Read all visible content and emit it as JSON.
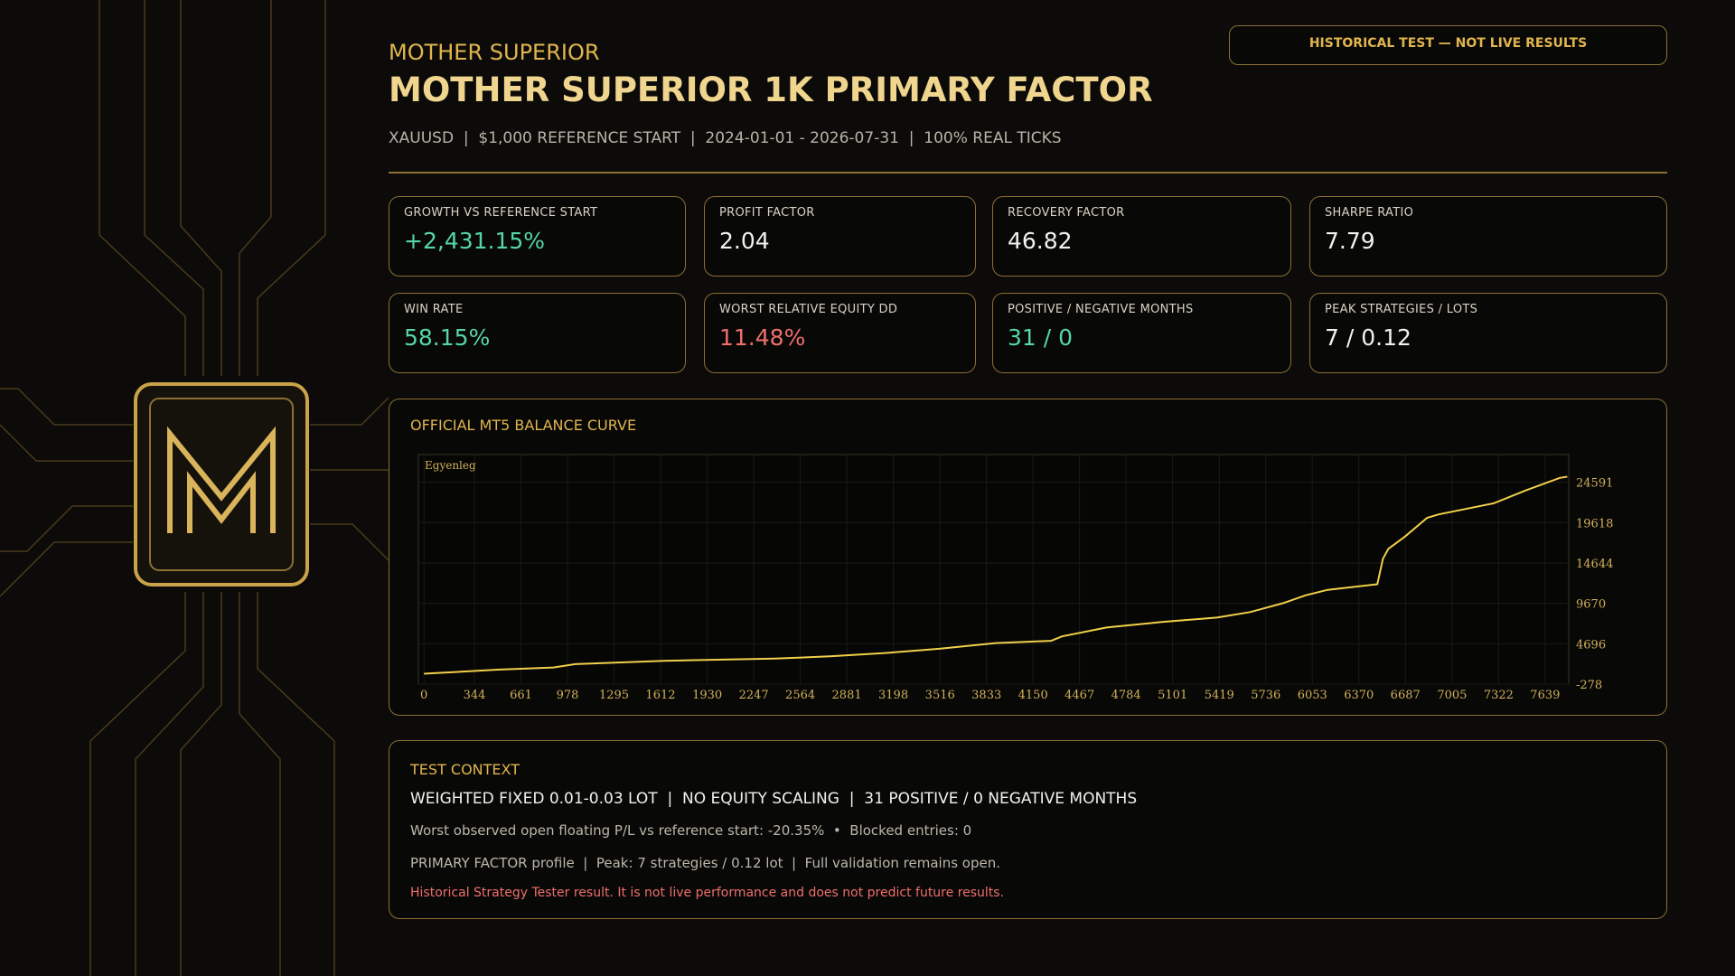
{
  "header": {
    "brand": "MOTHER SUPERIOR",
    "title": "MOTHER SUPERIOR 1K PRIMARY FACTOR",
    "meta": "XAUUSD  |  $1,000 REFERENCE START  |  2024-01-01 - 2026-07-31  |  100% REAL TICKS",
    "badge": "HISTORICAL TEST — NOT LIVE RESULTS"
  },
  "metrics": [
    {
      "label": "GROWTH VS REFERENCE START",
      "value": "+2,431.15%",
      "color": "#55d6a4"
    },
    {
      "label": "PROFIT FACTOR",
      "value": "2.04",
      "color": "#f3f1ea"
    },
    {
      "label": "RECOVERY FACTOR",
      "value": "46.82",
      "color": "#f3f1ea"
    },
    {
      "label": "SHARPE RATIO",
      "value": "7.79",
      "color": "#f3f1ea"
    },
    {
      "label": "WIN RATE",
      "value": "58.15%",
      "color": "#55d6a4"
    },
    {
      "label": "WORST RELATIVE EQUITY DD",
      "value": "11.48%",
      "color": "#ef6f6a"
    },
    {
      "label": "POSITIVE / NEGATIVE MONTHS",
      "value": "31 / 0",
      "color": "#55d6a4"
    },
    {
      "label": "PEAK STRATEGIES / LOTS",
      "value": "7 / 0.12",
      "color": "#f3f1ea"
    }
  ],
  "chart_data": {
    "type": "line",
    "title": "OFFICIAL MT5 BALANCE CURVE",
    "x": [
      0,
      505,
      882,
      1032,
      1635,
      2389,
      2766,
      3142,
      3519,
      3896,
      4273,
      4348,
      4650,
      5026,
      5403,
      5629,
      5855,
      6006,
      6157,
      6496,
      6534,
      6571,
      6684,
      6835,
      6911,
      7287,
      7513,
      7739,
      7790
    ],
    "series": [
      {
        "name": "Egyenleg",
        "color": "#f2d04a",
        "values": [
          1000,
          1500,
          1770,
          2180,
          2590,
          2860,
          3140,
          3550,
          4090,
          4780,
          5050,
          5600,
          6690,
          7370,
          7920,
          8600,
          9700,
          10650,
          11330,
          12020,
          15160,
          16390,
          17890,
          20210,
          20620,
          21990,
          23630,
          25130,
          25270
        ]
      }
    ],
    "xlim": [
      -38,
      7800
    ],
    "ylim": [
      -278,
      28000
    ],
    "xticks": [
      0,
      344,
      661,
      978,
      1295,
      1612,
      1930,
      2247,
      2564,
      2881,
      3198,
      3516,
      3833,
      4150,
      4467,
      4784,
      5101,
      5419,
      5736,
      6053,
      6370,
      6687,
      7005,
      7322,
      7639
    ],
    "yticks": [
      -278,
      4696,
      9670,
      14644,
      19618,
      24591
    ],
    "grid": true
  },
  "context": {
    "title": "TEST CONTEXT",
    "lines": [
      "WEIGHTED FIXED 0.01-0.03 LOT  |  NO EQUITY SCALING  |  31 POSITIVE / 0 NEGATIVE MONTHS",
      "Worst observed open floating P/L vs reference start: -20.35%  •  Blocked entries: 0",
      "PRIMARY FACTOR profile  |  Peak: 7 strategies / 0.12 lot  |  Full validation remains open.",
      "Historical Strategy Tester result. It is not live performance and does not predict future results."
    ]
  }
}
